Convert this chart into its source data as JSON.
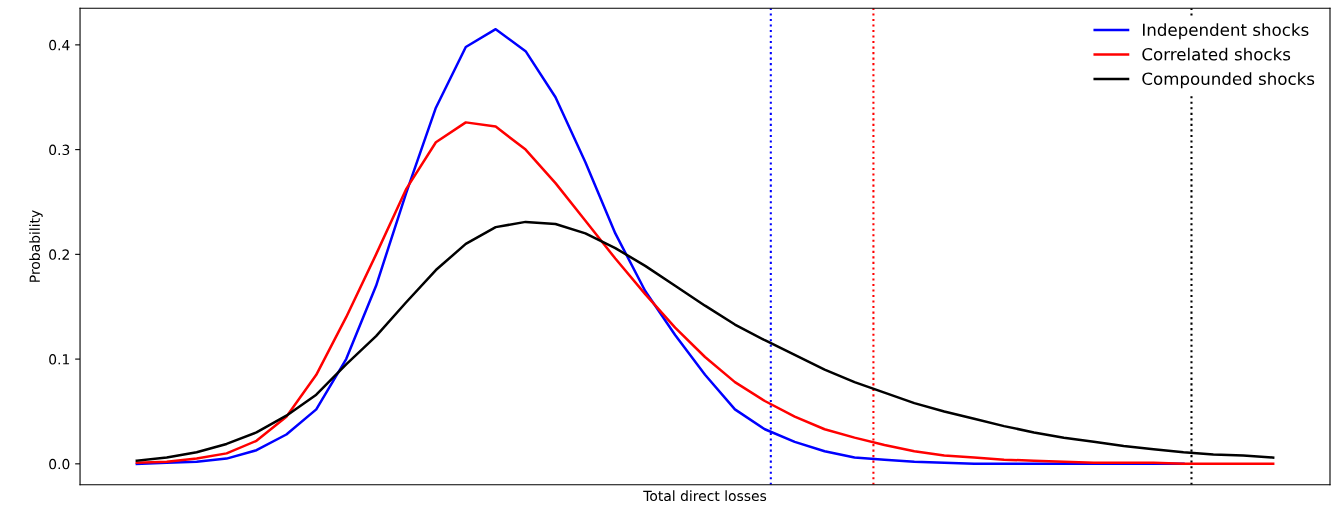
{
  "chart_data": {
    "type": "line",
    "xlabel": "Total direct losses",
    "ylabel": "Probability",
    "categories": [
      null,
      null,
      null,
      null,
      null,
      null,
      null,
      null,
      null,
      null,
      null,
      null,
      null,
      null,
      null,
      null,
      null,
      null,
      null,
      null,
      null,
      null,
      null,
      null,
      null,
      null,
      null,
      null,
      null,
      null,
      null,
      null,
      null,
      null,
      null,
      null,
      null,
      null,
      null
    ],
    "series": [
      {
        "name": "Independent shocks",
        "color": "#0000ff",
        "values": [
          0.0,
          0.001,
          0.002,
          0.005,
          0.013,
          0.028,
          0.052,
          0.1,
          0.17,
          0.258,
          0.34,
          0.398,
          0.415,
          0.394,
          0.35,
          0.288,
          0.22,
          0.165,
          0.123,
          0.085,
          0.052,
          0.033,
          0.021,
          0.012,
          0.006,
          0.004,
          0.002,
          0.001,
          0.0,
          0.0,
          0.0,
          0.0,
          0.0,
          0.0,
          0.0,
          0.0,
          null,
          null,
          null
        ]
      },
      {
        "name": "Correlated shocks",
        "color": "#ff0000",
        "values": [
          0.001,
          0.002,
          0.005,
          0.01,
          0.022,
          0.045,
          0.085,
          0.14,
          0.2,
          0.262,
          0.307,
          0.326,
          0.322,
          0.3,
          0.268,
          0.232,
          0.196,
          0.162,
          0.13,
          0.102,
          0.078,
          0.06,
          0.045,
          0.033,
          0.025,
          0.018,
          0.012,
          0.008,
          0.006,
          0.004,
          0.003,
          0.002,
          0.001,
          0.001,
          0.001,
          0.0,
          0.0,
          0.0,
          0.0
        ]
      },
      {
        "name": "Compounded shocks",
        "color": "#000000",
        "values": [
          0.003,
          0.006,
          0.011,
          0.019,
          0.03,
          0.046,
          0.066,
          0.095,
          0.122,
          0.154,
          0.185,
          0.21,
          0.226,
          0.231,
          0.229,
          0.22,
          0.206,
          0.189,
          0.17,
          0.151,
          0.133,
          0.118,
          0.104,
          0.09,
          0.078,
          0.068,
          0.058,
          0.05,
          0.043,
          0.036,
          0.03,
          0.025,
          0.021,
          0.017,
          0.014,
          0.011,
          0.009,
          0.008,
          0.006
        ]
      }
    ],
    "ylim": [
      -0.02,
      0.435
    ],
    "yticks": [
      {
        "value": 0,
        "label": "0.0"
      },
      0.1,
      0.2,
      0.3,
      0.4
    ],
    "tick_labels": "y",
    "legend": "top right",
    "grid": false,
    "line_style": "solid",
    "marker": "none"
  }
}
